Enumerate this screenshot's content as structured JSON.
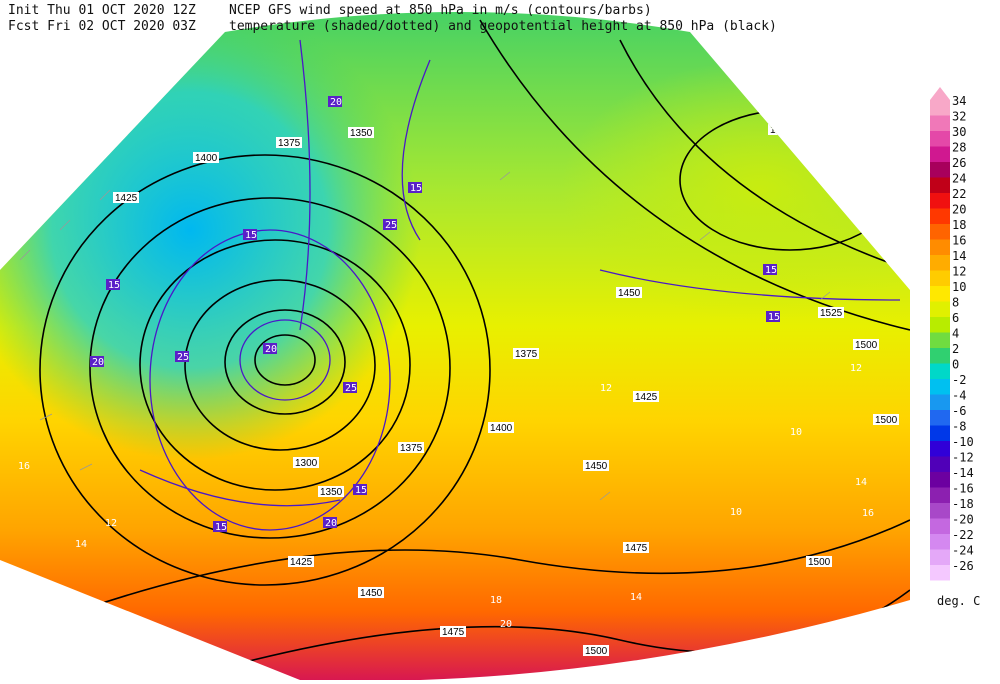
{
  "header": {
    "init": "Init  Thu 01 OCT 2020 12Z",
    "fcst": "Fcst Fri 02 OCT 2020 03Z",
    "line1": "NCEP GFS wind speed at 850 hPa in m/s (contours/barbs)",
    "line2": "temperature (shaded/dotted) and geopotential height at 850 hPa (black)"
  },
  "colorbar": {
    "levels": [
      34,
      32,
      30,
      28,
      26,
      24,
      22,
      20,
      18,
      16,
      14,
      12,
      10,
      8,
      6,
      4,
      2,
      0,
      -2,
      -4,
      -6,
      -8,
      -10,
      -12,
      -14,
      -16,
      -18,
      -20,
      -22,
      -24,
      -26
    ],
    "colors": [
      "#f8a8c8",
      "#f078b8",
      "#e448a8",
      "#d01890",
      "#a8005c",
      "#c00018",
      "#f01010",
      "#ff3800",
      "#ff6400",
      "#ff8c00",
      "#ffac00",
      "#ffcc00",
      "#ffe800",
      "#e0f000",
      "#b8ec00",
      "#70dc40",
      "#30d070",
      "#00d8c8",
      "#00c0f0",
      "#1898f0",
      "#2068f0",
      "#0038e8",
      "#3000d8",
      "#5000b8",
      "#6c00a0",
      "#8c20b0",
      "#a848c8",
      "#c468e0",
      "#d488f0",
      "#e4a8f8",
      "#f4c8ff"
    ],
    "unit": "deg. C"
  },
  "map": {
    "height_labels": [
      1350,
      1375,
      1400,
      1425,
      1500,
      1525,
      1500,
      1450,
      1375,
      1425,
      1400,
      1375,
      1450,
      1500,
      1475,
      1500,
      1425,
      1450,
      1475,
      1500,
      1350,
      1300
    ],
    "temperature_labels": [
      14,
      12,
      16,
      12,
      14,
      16,
      10,
      20,
      18,
      14,
      10,
      12
    ],
    "wind_labels": [
      20,
      25,
      15,
      15,
      20,
      25,
      20,
      25,
      15,
      20,
      15,
      15,
      15,
      15
    ]
  }
}
